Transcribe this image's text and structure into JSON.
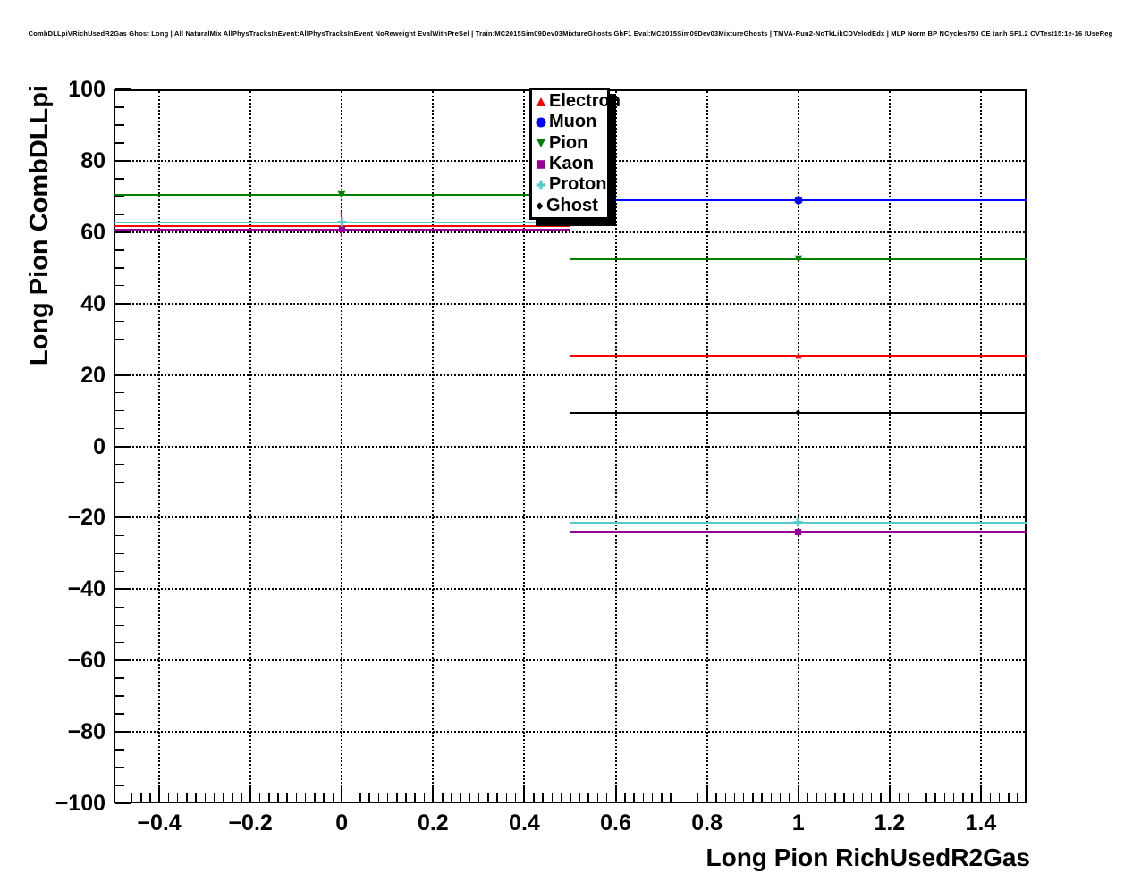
{
  "title": "CombDLLpiVRichUsedR2Gas Ghost Long | All NaturalMix AllPhysTracksInEvent:AllPhysTracksInEvent NoReweight EvalWithPreSel | Train:MC2015Sim09Dev03MixtureGhosts GhF1 Eval:MC2015Sim09Dev03MixtureGhosts | TMVA-Run2-NoTkLikCDVelodEdx | MLP Norm BP NCycles750 CE tanh SF1.2 CVTest15:1e-16 !UseReg",
  "axes": {
    "x": {
      "title": "Long Pion RichUsedR2Gas",
      "min": -0.5,
      "max": 1.5,
      "minor_step": 0.02,
      "major_ticks": [
        {
          "v": -0.4,
          "label": "−0.4"
        },
        {
          "v": -0.2,
          "label": "−0.2"
        },
        {
          "v": 0,
          "label": "0"
        },
        {
          "v": 0.2,
          "label": "0.2"
        },
        {
          "v": 0.4,
          "label": "0.4"
        },
        {
          "v": 0.6,
          "label": "0.6"
        },
        {
          "v": 0.8,
          "label": "0.8"
        },
        {
          "v": 1,
          "label": "1"
        },
        {
          "v": 1.2,
          "label": "1.2"
        },
        {
          "v": 1.4,
          "label": "1.4"
        }
      ]
    },
    "y": {
      "title": "Long Pion CombDLLpi",
      "min": -100,
      "max": 100,
      "minor_step": 5,
      "major_ticks": [
        {
          "v": 100,
          "label": "100"
        },
        {
          "v": 80,
          "label": "80"
        },
        {
          "v": 60,
          "label": "60"
        },
        {
          "v": 40,
          "label": "40"
        },
        {
          "v": 20,
          "label": "20"
        },
        {
          "v": 0,
          "label": "0"
        },
        {
          "v": -20,
          "label": "−20"
        },
        {
          "v": -40,
          "label": "−40"
        },
        {
          "v": -60,
          "label": "−60"
        },
        {
          "v": -80,
          "label": "−80"
        },
        {
          "v": -100,
          "label": "−100"
        }
      ]
    }
  },
  "legend": {
    "entries": [
      "Electron",
      "Muon",
      "Pion",
      "Kaon",
      "Proton",
      "Ghost"
    ]
  },
  "chart_data": {
    "type": "scatter",
    "style": "ROOT TProfile overlay: horizontal bin-width lines with central markers, dotted grid",
    "title": "CombDLLpiVRichUsedR2Gas Ghost Long | All NaturalMix AllPhysTracksInEvent:AllPhysTracksInEvent NoReweight EvalWithPreSel | Train:MC2015Sim09Dev03MixtureGhosts GhF1 Eval:MC2015Sim09Dev03MixtureGhosts | TMVA-Run2-NoTkLikCDVelodEdx | MLP Norm BP NCycles750 CE tanh SF1.2 CVTest15:1e-16 !UseReg",
    "xlabel": "Long Pion RichUsedR2Gas",
    "ylabel": "Long Pion CombDLLpi",
    "xlim": [
      -0.5,
      1.5
    ],
    "ylim": [
      -100,
      100
    ],
    "grid": "dotted black at every major tick",
    "legend_position": "top-center",
    "series": [
      {
        "name": "Electron",
        "color": "#ff0000",
        "marker": "triangle-up",
        "marker_size": 8,
        "points": [
          {
            "x": 0,
            "xlow": -0.5,
            "xhigh": 0.5,
            "y": 61.8,
            "yerr": [
              58.7,
              65.8
            ]
          },
          {
            "x": 1,
            "xlow": 0.5,
            "xhigh": 1.5,
            "y": 25.4
          }
        ]
      },
      {
        "name": "Muon",
        "color": "#0000ff",
        "marker": "circle",
        "marker_size": 10,
        "points": [
          {
            "x": 1,
            "xlow": 0.5,
            "xhigh": 1.5,
            "y": 68.9
          }
        ]
      },
      {
        "name": "Pion",
        "color": "#008000",
        "marker": "triangle-down",
        "marker_size": 10,
        "points": [
          {
            "x": 0,
            "xlow": -0.5,
            "xhigh": 0.5,
            "y": 70.5
          },
          {
            "x": 1,
            "xlow": 0.5,
            "xhigh": 1.5,
            "y": 52.4
          }
        ]
      },
      {
        "name": "Kaon",
        "color": "#990099",
        "marker": "square",
        "marker_size": 9,
        "points": [
          {
            "x": 0,
            "xlow": -0.5,
            "xhigh": 0.5,
            "y": 60.8
          },
          {
            "x": 1,
            "xlow": 0.5,
            "xhigh": 1.5,
            "y": -24.0
          }
        ]
      },
      {
        "name": "Proton",
        "color": "#55cccc",
        "marker": "plus",
        "marker_size": 11,
        "points": [
          {
            "x": 0,
            "xlow": -0.5,
            "xhigh": 0.5,
            "y": 62.8
          },
          {
            "x": 1,
            "xlow": 0.5,
            "xhigh": 1.5,
            "y": -21.3
          }
        ]
      },
      {
        "name": "Ghost",
        "color": "#000000",
        "marker": "diamond",
        "marker_size": 7,
        "points": [
          {
            "x": 1,
            "xlow": 0.5,
            "xhigh": 1.5,
            "y": 9.5
          }
        ]
      }
    ]
  }
}
